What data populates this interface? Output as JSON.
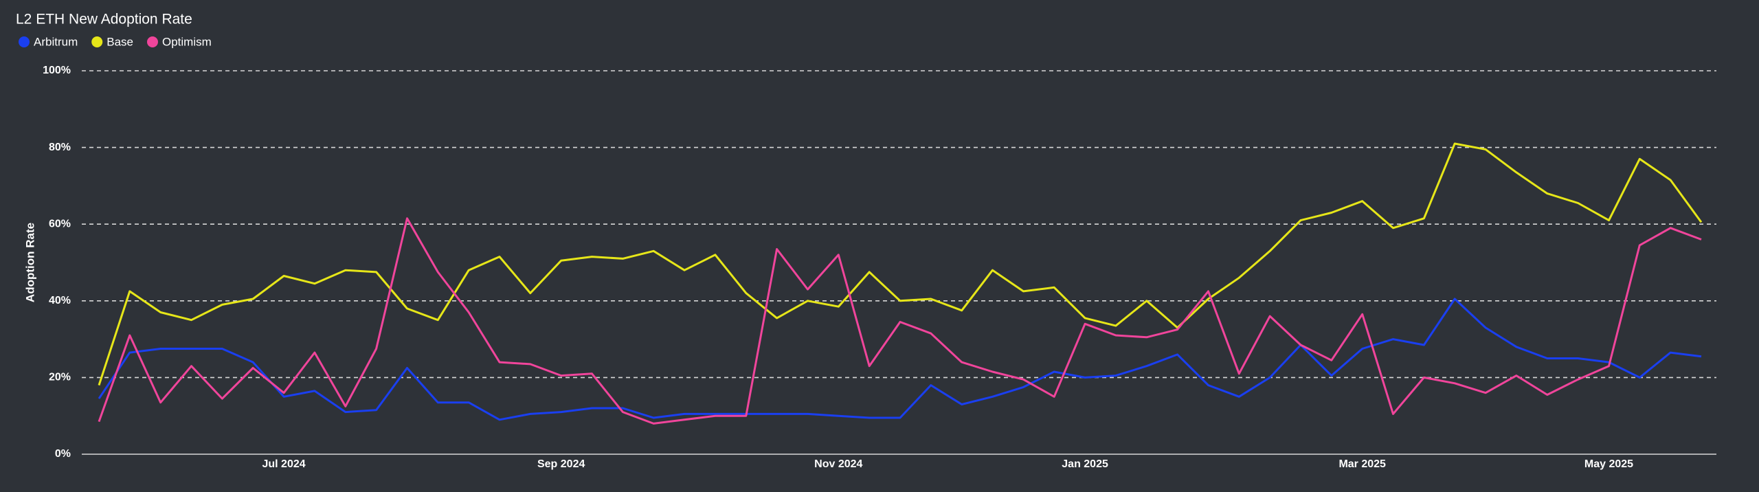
{
  "chart_data": {
    "type": "line",
    "title": "L2 ETH New Adoption Rate",
    "y_label": "Adoption Rate",
    "categories": [
      null,
      null,
      null,
      null,
      null,
      null,
      "Jul 2024",
      null,
      null,
      null,
      null,
      null,
      null,
      null,
      null,
      "Sep 2024",
      null,
      null,
      null,
      null,
      null,
      null,
      null,
      null,
      "Nov 2024",
      null,
      null,
      null,
      null,
      null,
      null,
      null,
      "Jan 2025",
      null,
      null,
      null,
      null,
      null,
      null,
      null,
      null,
      "Mar 2025",
      null,
      null,
      null,
      null,
      null,
      null,
      null,
      "May 2025",
      null,
      null,
      null
    ],
    "series": [
      {
        "name": "Arbitrum",
        "color": "#1a3ff0",
        "values": [
          14.5,
          26.5,
          27.5,
          27.5,
          27.5,
          24,
          15,
          16.5,
          11,
          11.5,
          22.5,
          13.5,
          13.5,
          9,
          10.5,
          11,
          12,
          12,
          9.5,
          10.5,
          10.5,
          10.5,
          10.5,
          10.5,
          10,
          9.5,
          9.5,
          18,
          13,
          15,
          17.5,
          21.5,
          20,
          20.5,
          23,
          26,
          18,
          15,
          20,
          28.5,
          20.5,
          27.5,
          30,
          28.5,
          40.5,
          33,
          28,
          25,
          25,
          24,
          20,
          26.5,
          25.5
        ]
      },
      {
        "name": "Base",
        "color": "#e6e619",
        "values": [
          18,
          42.5,
          37,
          35,
          39,
          40.5,
          46.5,
          44.5,
          48,
          47.5,
          38,
          35,
          48,
          51.5,
          42,
          50.5,
          51.5,
          51,
          53,
          48,
          52,
          42,
          35.5,
          40,
          38.5,
          47.5,
          40,
          40.5,
          37.5,
          48,
          42.5,
          43.5,
          35.5,
          33.5,
          40,
          33,
          40.5,
          46,
          53,
          61,
          63,
          66,
          59,
          61.5,
          81,
          79.5,
          73.5,
          68,
          65.5,
          61,
          77,
          71.5,
          60.5
        ]
      },
      {
        "name": "Optimism",
        "color": "#f0459b",
        "values": [
          8.5,
          31,
          13.5,
          23,
          14.5,
          22.5,
          16,
          26.5,
          12.5,
          27.5,
          61.5,
          47.5,
          37,
          24,
          23.5,
          20.5,
          21,
          11,
          8,
          9,
          10,
          10,
          53.5,
          43,
          52,
          23,
          34.5,
          31.5,
          24,
          21.5,
          19.5,
          15,
          34,
          31,
          30.5,
          32.5,
          42.5,
          21,
          36,
          28.5,
          24.5,
          36.5,
          10.5,
          20,
          18.5,
          16,
          20.5,
          15.5,
          19.5,
          23,
          54.5,
          59,
          56
        ]
      }
    ],
    "ylim": [
      0,
      100
    ],
    "yticks": [
      {
        "value": 0,
        "label": "0%"
      },
      {
        "value": 20,
        "label": "20%"
      },
      {
        "value": 40,
        "label": "40%"
      },
      {
        "value": 60,
        "label": "60%"
      },
      {
        "value": 80,
        "label": "80%"
      },
      {
        "value": 100,
        "label": "100%"
      }
    ],
    "grid": true,
    "legend": "top-left"
  }
}
